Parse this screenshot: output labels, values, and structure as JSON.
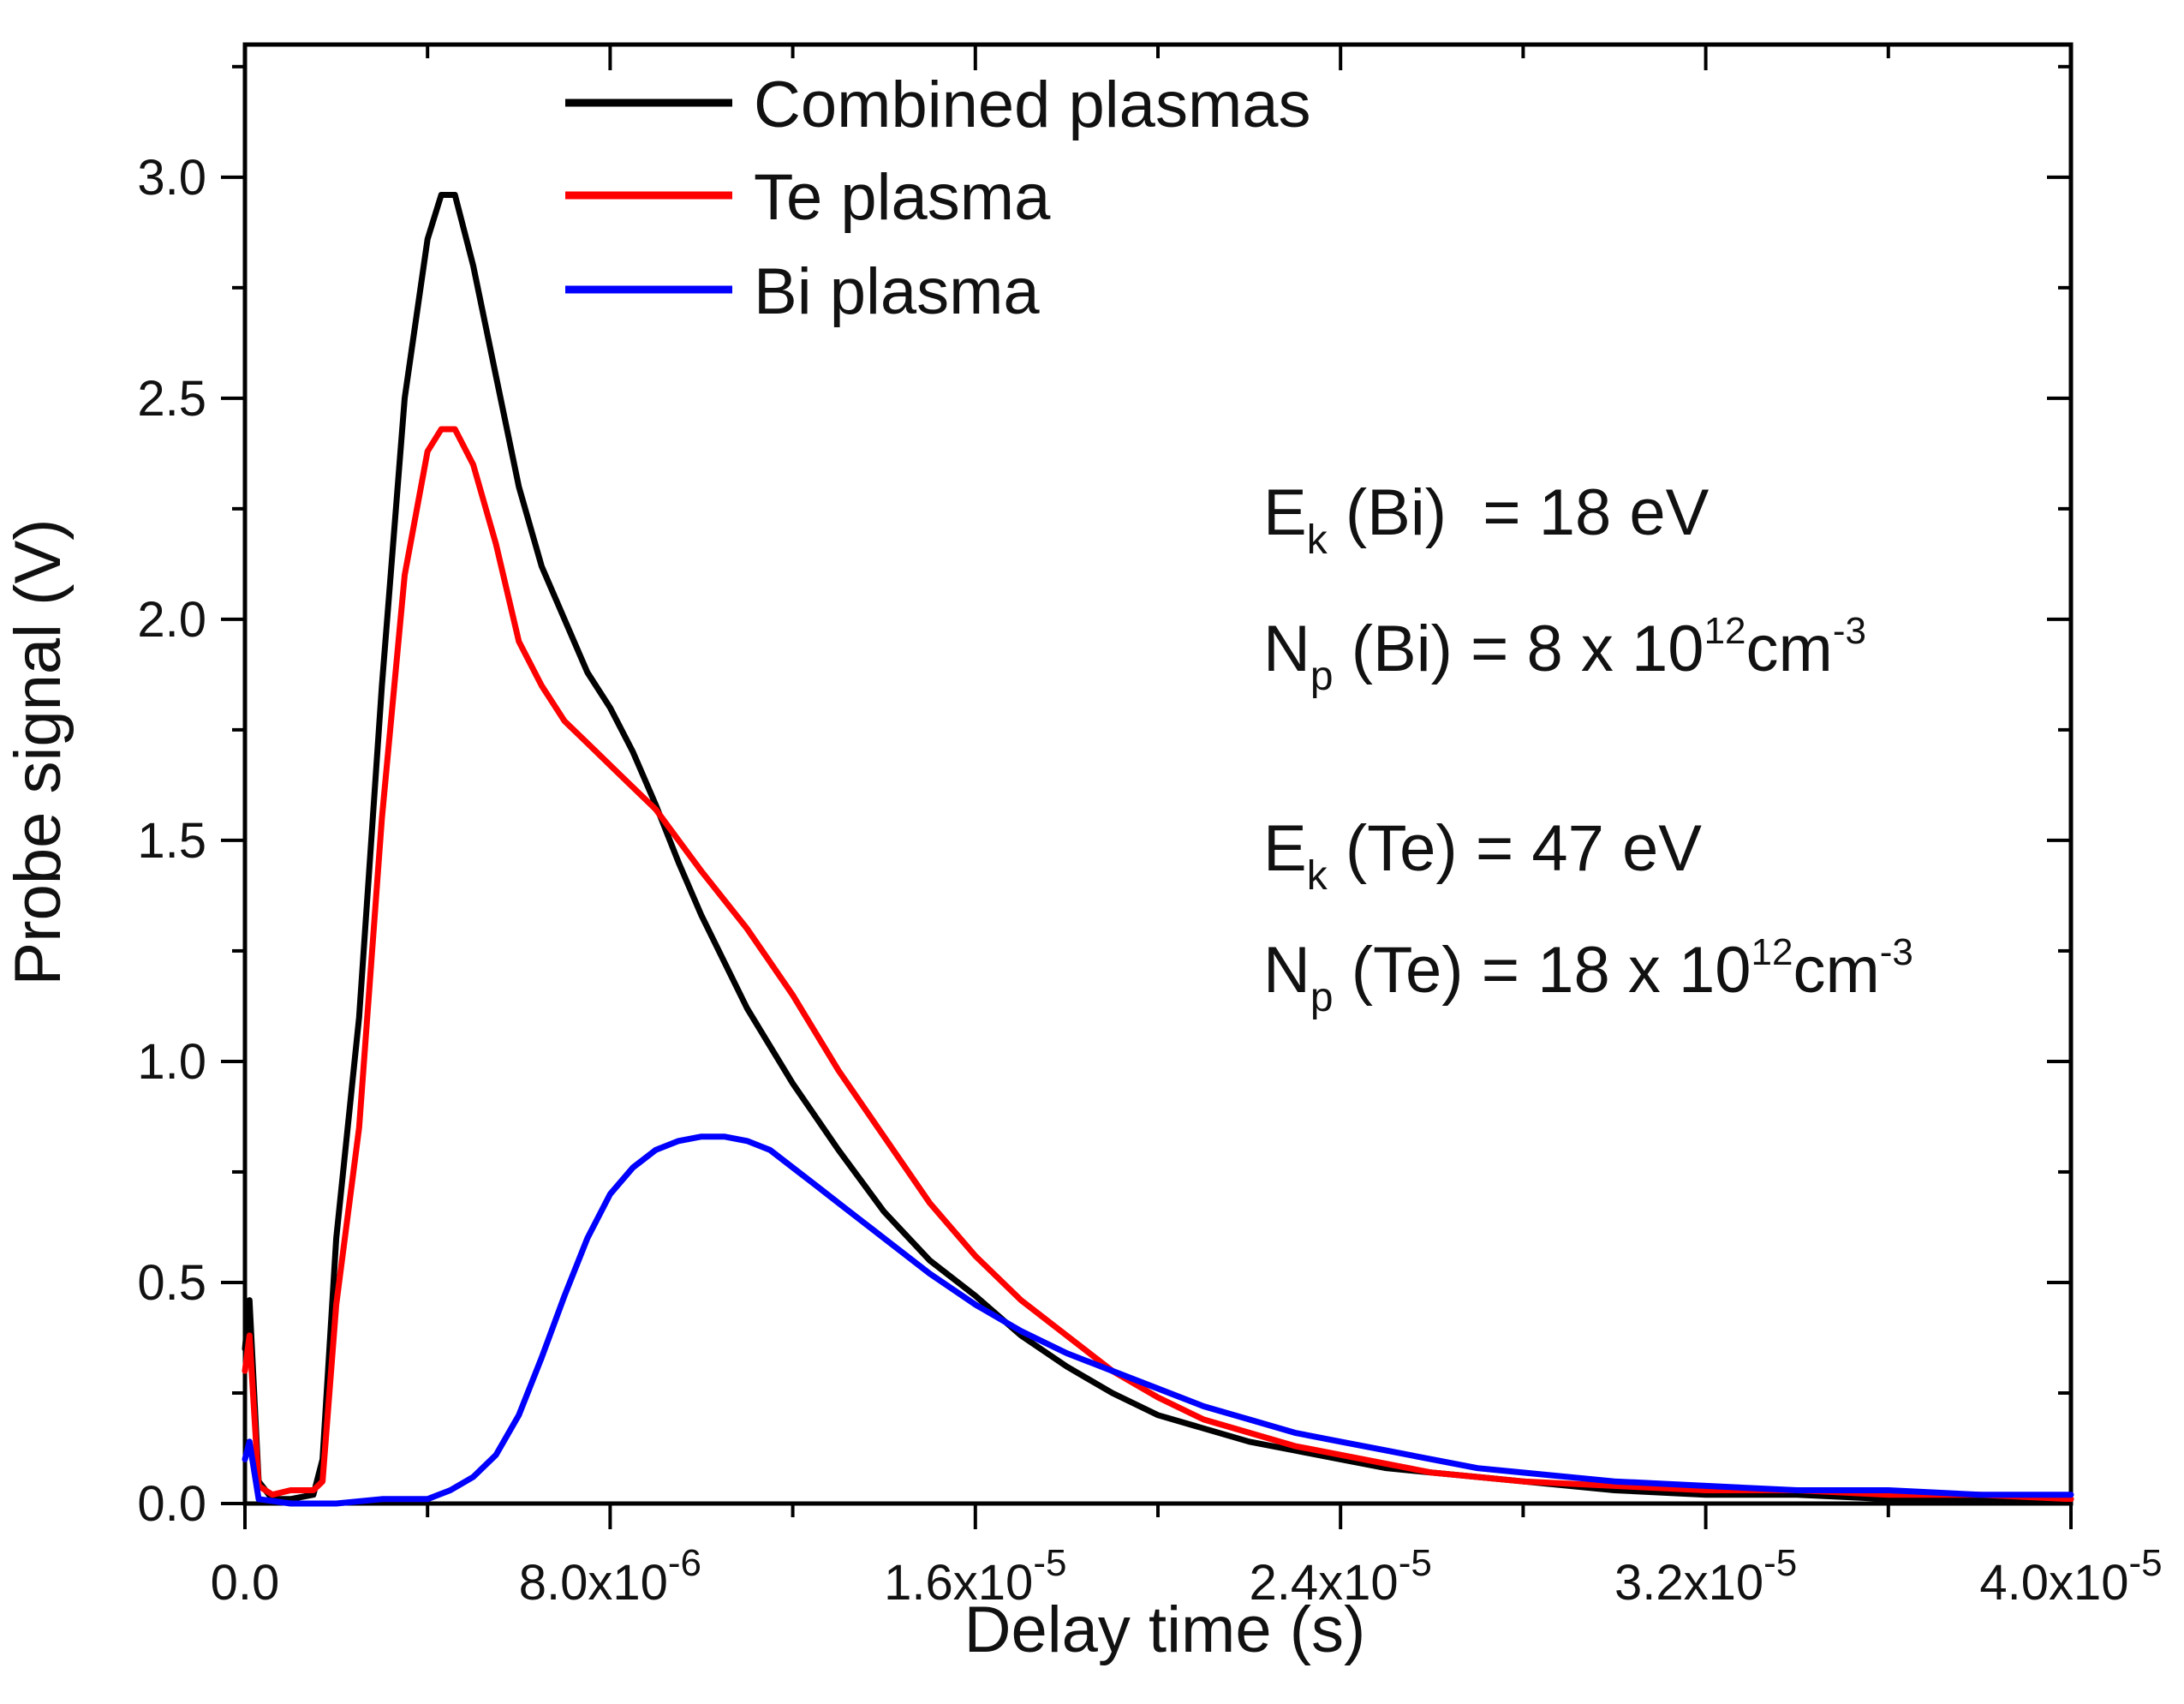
{
  "chart_data": {
    "type": "line",
    "xlabel": "Delay time (s)",
    "ylabel": "Probe signal (V)",
    "xlim": [
      0,
      4e-05
    ],
    "ylim": [
      0,
      3.3
    ],
    "x_ticks": [
      {
        "value": 0,
        "label": "0.0",
        "sup": ""
      },
      {
        "value": 8e-06,
        "label": "8.0x10",
        "sup": "-6"
      },
      {
        "value": 1.6e-05,
        "label": "1.6x10",
        "sup": "-5"
      },
      {
        "value": 2.4e-05,
        "label": "2.4x10",
        "sup": "-5"
      },
      {
        "value": 3.2e-05,
        "label": "3.2x10",
        "sup": "-5"
      },
      {
        "value": 4e-05,
        "label": "4.0x10",
        "sup": "-5"
      }
    ],
    "y_ticks": [
      {
        "value": 0.0,
        "label": "0.0"
      },
      {
        "value": 0.5,
        "label": "0.5"
      },
      {
        "value": 1.0,
        "label": "1.0"
      },
      {
        "value": 1.5,
        "label": "1.5"
      },
      {
        "value": 2.0,
        "label": "2.0"
      },
      {
        "value": 2.5,
        "label": "2.5"
      },
      {
        "value": 3.0,
        "label": "3.0"
      }
    ],
    "legend_position": "top-left",
    "series": [
      {
        "name": "Combined plasmas",
        "color": "#000000",
        "x": [
          0,
          1e-07,
          3e-07,
          6e-07,
          1e-06,
          1.5e-06,
          1.7e-06,
          2e-06,
          2.5e-06,
          3e-06,
          3.5e-06,
          4e-06,
          4.3e-06,
          4.6e-06,
          5e-06,
          5.5e-06,
          6e-06,
          6.5e-06,
          7e-06,
          7.5e-06,
          8e-06,
          8.5e-06,
          9e-06,
          9.5e-06,
          1e-05,
          1.1e-05,
          1.2e-05,
          1.3e-05,
          1.4e-05,
          1.5e-05,
          1.6e-05,
          1.7e-05,
          1.8e-05,
          1.9e-05,
          2e-05,
          2.1e-05,
          2.2e-05,
          2.3e-05,
          2.4e-05,
          2.5e-05,
          2.6e-05,
          2.7e-05,
          2.8e-05,
          3e-05,
          3.2e-05,
          3.4e-05,
          3.6e-05,
          3.8e-05,
          4e-05
        ],
        "y": [
          0.35,
          0.46,
          0.05,
          0.01,
          0.01,
          0.02,
          0.1,
          0.6,
          1.1,
          1.85,
          2.5,
          2.86,
          2.96,
          2.96,
          2.8,
          2.55,
          2.3,
          2.12,
          2.0,
          1.88,
          1.8,
          1.7,
          1.58,
          1.45,
          1.33,
          1.12,
          0.95,
          0.8,
          0.66,
          0.55,
          0.47,
          0.38,
          0.31,
          0.25,
          0.2,
          0.17,
          0.14,
          0.12,
          0.1,
          0.08,
          0.07,
          0.06,
          0.05,
          0.03,
          0.02,
          0.02,
          0.01,
          0.01,
          0.01
        ]
      },
      {
        "name": "Te plasma",
        "color": "#ff0000",
        "x": [
          0,
          1e-07,
          3e-07,
          6e-07,
          1e-06,
          1.5e-06,
          1.7e-06,
          2e-06,
          2.5e-06,
          3e-06,
          3.5e-06,
          4e-06,
          4.3e-06,
          4.6e-06,
          5e-06,
          5.5e-06,
          6e-06,
          6.5e-06,
          7e-06,
          7.5e-06,
          8e-06,
          8.5e-06,
          9e-06,
          9.5e-06,
          1e-05,
          1.1e-05,
          1.2e-05,
          1.3e-05,
          1.4e-05,
          1.5e-05,
          1.6e-05,
          1.7e-05,
          1.8e-05,
          1.9e-05,
          2e-05,
          2.1e-05,
          2.2e-05,
          2.3e-05,
          2.4e-05,
          2.5e-05,
          2.6e-05,
          2.7e-05,
          2.8e-05,
          3e-05,
          3.2e-05,
          3.4e-05,
          3.6e-05,
          3.8e-05,
          4e-05
        ],
        "y": [
          0.3,
          0.38,
          0.04,
          0.02,
          0.03,
          0.03,
          0.05,
          0.45,
          0.85,
          1.55,
          2.1,
          2.38,
          2.43,
          2.43,
          2.35,
          2.17,
          1.95,
          1.85,
          1.77,
          1.72,
          1.67,
          1.62,
          1.57,
          1.5,
          1.43,
          1.3,
          1.15,
          0.98,
          0.83,
          0.68,
          0.56,
          0.46,
          0.38,
          0.3,
          0.24,
          0.19,
          0.16,
          0.13,
          0.11,
          0.09,
          0.07,
          0.06,
          0.05,
          0.04,
          0.03,
          0.03,
          0.02,
          0.02,
          0.01
        ]
      },
      {
        "name": "Bi plasma",
        "color": "#0000ff",
        "x": [
          0,
          1e-07,
          3e-07,
          1e-06,
          2e-06,
          3e-06,
          4e-06,
          4.5e-06,
          5e-06,
          5.5e-06,
          6e-06,
          6.5e-06,
          7e-06,
          7.5e-06,
          8e-06,
          8.5e-06,
          9e-06,
          9.5e-06,
          1e-05,
          1.05e-05,
          1.1e-05,
          1.15e-05,
          1.2e-05,
          1.25e-05,
          1.3e-05,
          1.4e-05,
          1.5e-05,
          1.6e-05,
          1.7e-05,
          1.8e-05,
          1.9e-05,
          2e-05,
          2.1e-05,
          2.2e-05,
          2.3e-05,
          2.4e-05,
          2.5e-05,
          2.6e-05,
          2.7e-05,
          2.8e-05,
          3e-05,
          3.2e-05,
          3.4e-05,
          3.6e-05,
          3.8e-05,
          4e-05
        ],
        "y": [
          0.1,
          0.14,
          0.01,
          0.0,
          0.0,
          0.01,
          0.01,
          0.03,
          0.06,
          0.11,
          0.2,
          0.33,
          0.47,
          0.6,
          0.7,
          0.76,
          0.8,
          0.82,
          0.83,
          0.83,
          0.82,
          0.8,
          0.76,
          0.72,
          0.68,
          0.6,
          0.52,
          0.45,
          0.39,
          0.34,
          0.3,
          0.26,
          0.22,
          0.19,
          0.16,
          0.14,
          0.12,
          0.1,
          0.08,
          0.07,
          0.05,
          0.04,
          0.03,
          0.03,
          0.02,
          0.02
        ]
      }
    ]
  },
  "annotations": {
    "ek_bi": {
      "main": "E",
      "sub": "k",
      "rest": " (Bi)  = 18 eV"
    },
    "np_bi": {
      "main": "N",
      "sub": "p",
      "rest": " (Bi) = 8 x 10",
      "sup": "12",
      "unit": "cm",
      "unit_sup": "-3"
    },
    "ek_te": {
      "main": "E",
      "sub": "k",
      "rest": " (Te) = 47 eV"
    },
    "np_te": {
      "main": "N",
      "sub": "p",
      "rest": " (Te) = 18 x 10",
      "sup": "12",
      "unit": "cm",
      "unit_sup": "-3"
    }
  }
}
